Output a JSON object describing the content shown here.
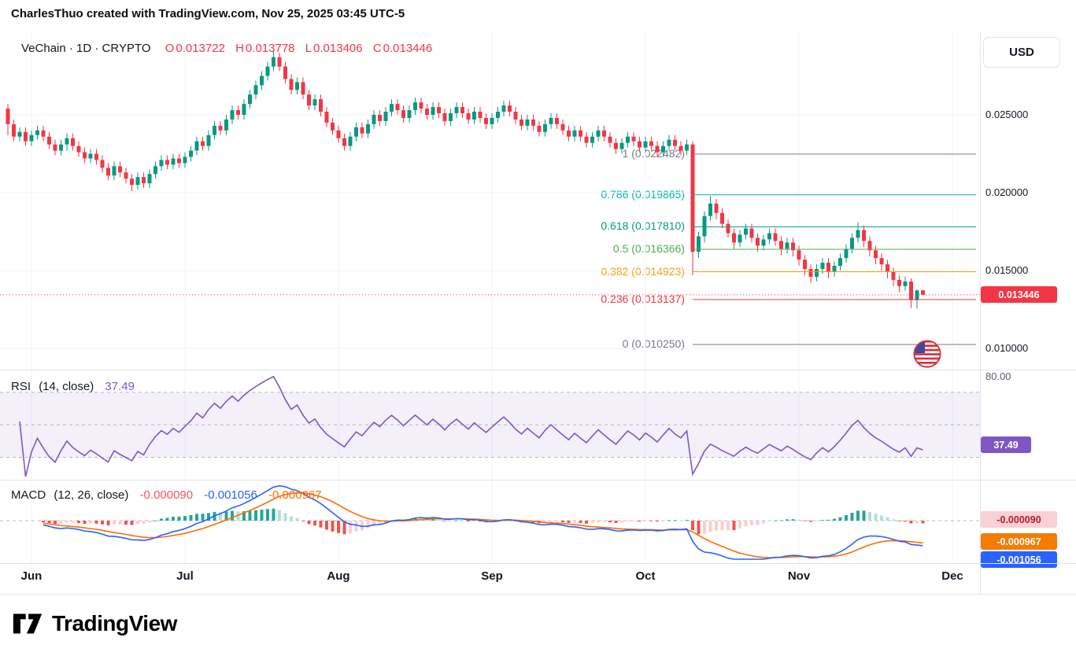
{
  "header": {
    "attribution": "CharlesThuo created with TradingView.com, Nov 25, 2025 03:45 UTC-5"
  },
  "legend": {
    "symbol_title": "VeChain · 1D · CRYPTO",
    "open_label": "O",
    "open": "0.013722",
    "high_label": "H",
    "high": "0.013778",
    "low_label": "L",
    "low": "0.013406",
    "close_label": "C",
    "close": "0.013446"
  },
  "price_axis": {
    "currency_button": "USD",
    "ticks": [
      {
        "label": "0.025000",
        "value": 0.025
      },
      {
        "label": "0.020000",
        "value": 0.02
      },
      {
        "label": "0.015000",
        "value": 0.015
      },
      {
        "label": "0.010000",
        "value": 0.01
      }
    ],
    "current_price": {
      "label": "0.013446",
      "value": 0.013446
    }
  },
  "rsi_panel": {
    "title": "RSI",
    "params": "(14, close)",
    "value_label": "37.49",
    "value": 37.49,
    "axis_label": "80.00",
    "upper": 70,
    "middle": 50,
    "lower": 30
  },
  "macd_panel": {
    "title": "MACD",
    "params": "(12, 26, close)",
    "hist_label": "-0.000090",
    "macd_label": "-0.001056",
    "signal_label": "-0.000967",
    "badges": [
      {
        "label": "-0.000090",
        "bg": "#f9d0d4",
        "fg": "#b91d29"
      },
      {
        "label": "-0.000967",
        "bg": "#f57c00",
        "fg": "#ffffff"
      },
      {
        "label": "-0.001056",
        "bg": "#2962ff",
        "fg": "#ffffff"
      }
    ]
  },
  "time_axis": {
    "labels": [
      "Jun",
      "Jul",
      "Aug",
      "Sep",
      "Oct",
      "Nov",
      "Dec"
    ]
  },
  "footer": {
    "brand": "TradingView"
  },
  "colors": {
    "up": "#089981",
    "down": "#f23645",
    "grid": "#f0f3fa",
    "rsi_line": "#7e57c2",
    "rsi_band": "rgba(126,87,194,0.09)",
    "macd_line": "#2962ff",
    "signal_line": "#ff6d00",
    "hist_pos": "#26a69a",
    "hist_pos_weak": "#b2dfdb",
    "hist_neg": "#ef5350",
    "hist_neg_weak": "#fbcdd0",
    "current_price": "#f23645",
    "hist_text": "#f7525f"
  },
  "chart_data": {
    "type": "candlestick",
    "title": "VeChain · 1D · CRYPTO",
    "symbol": "VeChain",
    "interval": "1D",
    "exchange": "CRYPTO",
    "x_axis_months": [
      "Jun",
      "Jul",
      "Aug",
      "Sep",
      "Oct",
      "Nov",
      "Dec"
    ],
    "y_ticks": [
      0.025,
      0.02,
      0.015,
      0.01
    ],
    "current_ohlc": {
      "open": 0.013722,
      "high": 0.013778,
      "low": 0.013406,
      "close": 0.013446
    },
    "fib_retracement": {
      "high": 0.022482,
      "low": 0.01025,
      "levels": [
        {
          "ratio": 1,
          "price": 0.022482,
          "label": "1 (0.022482)",
          "color": "#787b86"
        },
        {
          "ratio": 0.786,
          "price": 0.019865,
          "label": "0.786 (0.019865)",
          "color": "#00b5ad"
        },
        {
          "ratio": 0.618,
          "price": 0.01781,
          "label": "0.618 (0.017810)",
          "color": "#089981"
        },
        {
          "ratio": 0.5,
          "price": 0.016366,
          "label": "0.5 (0.016366)",
          "color": "#4caf50"
        },
        {
          "ratio": 0.382,
          "price": 0.014923,
          "label": "0.382 (0.014923)",
          "color": "#ff9800"
        },
        {
          "ratio": 0.236,
          "price": 0.013137,
          "label": "0.236 (0.013137)",
          "color": "#f23645"
        },
        {
          "ratio": 0,
          "price": 0.01025,
          "label": "0 (0.010250)",
          "color": "#787b86"
        }
      ]
    },
    "indicators": {
      "rsi": {
        "period": 14,
        "source": "close",
        "current": 37.49,
        "levels": [
          70,
          30
        ]
      },
      "macd": {
        "fast": 12,
        "slow": 26,
        "signal_period": 9,
        "histogram": -9e-05,
        "macd": -0.001056,
        "signal": -0.000967
      }
    },
    "price_unit": 0.0001,
    "candles": [
      [
        254,
        257,
        237,
        244
      ],
      [
        244,
        247,
        233,
        236
      ],
      [
        236,
        242,
        233,
        239
      ],
      [
        239,
        242,
        230,
        233
      ],
      [
        233,
        240,
        230,
        237
      ],
      [
        237,
        243,
        234,
        240
      ],
      [
        240,
        243,
        233,
        236
      ],
      [
        236,
        239,
        228,
        231
      ],
      [
        231,
        234,
        224,
        227
      ],
      [
        227,
        234,
        224,
        231
      ],
      [
        231,
        238,
        227,
        235
      ],
      [
        235,
        238,
        227,
        230
      ],
      [
        230,
        233,
        223,
        226
      ],
      [
        226,
        229,
        219,
        222
      ],
      [
        222,
        228,
        219,
        225
      ],
      [
        225,
        228,
        218,
        221
      ],
      [
        221,
        224,
        213,
        216
      ],
      [
        216,
        219,
        208,
        211
      ],
      [
        211,
        220,
        208,
        217
      ],
      [
        217,
        220,
        210,
        213
      ],
      [
        213,
        216,
        206,
        209
      ],
      [
        209,
        212,
        201,
        205
      ],
      [
        205,
        213,
        202,
        210
      ],
      [
        210,
        213,
        203,
        206
      ],
      [
        206,
        215,
        203,
        212
      ],
      [
        212,
        220,
        209,
        217
      ],
      [
        217,
        224,
        214,
        221
      ],
      [
        221,
        224,
        215,
        218
      ],
      [
        218,
        225,
        215,
        222
      ],
      [
        222,
        225,
        216,
        219
      ],
      [
        219,
        226,
        216,
        223
      ],
      [
        223,
        230,
        220,
        227
      ],
      [
        227,
        236,
        224,
        233
      ],
      [
        233,
        236,
        227,
        230
      ],
      [
        230,
        240,
        227,
        237
      ],
      [
        237,
        246,
        234,
        243
      ],
      [
        243,
        246,
        237,
        240
      ],
      [
        240,
        250,
        237,
        247
      ],
      [
        247,
        256,
        244,
        253
      ],
      [
        253,
        256,
        247,
        250
      ],
      [
        250,
        260,
        247,
        257
      ],
      [
        257,
        266,
        254,
        263
      ],
      [
        263,
        272,
        260,
        269
      ],
      [
        269,
        278,
        266,
        275
      ],
      [
        275,
        284,
        272,
        281
      ],
      [
        281,
        291,
        278,
        287
      ],
      [
        287,
        290,
        278,
        281
      ],
      [
        281,
        284,
        270,
        273
      ],
      [
        273,
        276,
        263,
        266
      ],
      [
        266,
        274,
        263,
        271
      ],
      [
        271,
        274,
        260,
        263
      ],
      [
        263,
        266,
        253,
        256
      ],
      [
        256,
        263,
        253,
        260
      ],
      [
        260,
        263,
        249,
        252
      ],
      [
        252,
        255,
        242,
        245
      ],
      [
        245,
        248,
        237,
        240
      ],
      [
        240,
        243,
        232,
        235
      ],
      [
        235,
        238,
        227,
        230
      ],
      [
        230,
        239,
        227,
        236
      ],
      [
        236,
        245,
        233,
        242
      ],
      [
        242,
        245,
        235,
        238
      ],
      [
        238,
        247,
        235,
        244
      ],
      [
        244,
        253,
        241,
        250
      ],
      [
        250,
        253,
        243,
        246
      ],
      [
        246,
        255,
        243,
        252
      ],
      [
        252,
        260,
        249,
        257
      ],
      [
        257,
        260,
        250,
        253
      ],
      [
        253,
        256,
        245,
        248
      ],
      [
        248,
        256,
        245,
        253
      ],
      [
        253,
        261,
        250,
        258
      ],
      [
        258,
        261,
        251,
        254
      ],
      [
        254,
        257,
        247,
        250
      ],
      [
        250,
        258,
        247,
        255
      ],
      [
        255,
        258,
        248,
        251
      ],
      [
        251,
        254,
        243,
        246
      ],
      [
        246,
        254,
        243,
        251
      ],
      [
        251,
        258,
        248,
        255
      ],
      [
        255,
        258,
        248,
        251
      ],
      [
        251,
        254,
        244,
        247
      ],
      [
        247,
        255,
        244,
        252
      ],
      [
        252,
        255,
        245,
        248
      ],
      [
        248,
        251,
        241,
        244
      ],
      [
        244,
        251,
        241,
        248
      ],
      [
        248,
        255,
        245,
        252
      ],
      [
        252,
        259,
        249,
        256
      ],
      [
        256,
        259,
        249,
        252
      ],
      [
        252,
        255,
        244,
        247
      ],
      [
        247,
        250,
        240,
        243
      ],
      [
        243,
        250,
        240,
        247
      ],
      [
        247,
        250,
        240,
        243
      ],
      [
        243,
        246,
        236,
        239
      ],
      [
        239,
        247,
        236,
        244
      ],
      [
        244,
        251,
        241,
        248
      ],
      [
        248,
        251,
        241,
        244
      ],
      [
        244,
        247,
        237,
        240
      ],
      [
        240,
        243,
        233,
        236
      ],
      [
        236,
        243,
        233,
        240
      ],
      [
        240,
        243,
        233,
        236
      ],
      [
        236,
        239,
        229,
        232
      ],
      [
        232,
        239,
        229,
        236
      ],
      [
        236,
        243,
        233,
        240
      ],
      [
        240,
        243,
        233,
        236
      ],
      [
        236,
        239,
        229,
        232
      ],
      [
        232,
        235,
        225,
        228
      ],
      [
        228,
        235,
        225,
        232
      ],
      [
        232,
        239,
        229,
        236
      ],
      [
        236,
        239,
        230,
        233
      ],
      [
        233,
        236,
        226,
        229
      ],
      [
        229,
        236,
        226,
        233
      ],
      [
        233,
        236,
        227,
        230
      ],
      [
        230,
        233,
        223,
        226
      ],
      [
        226,
        233,
        223,
        230
      ],
      [
        230,
        237,
        227,
        234
      ],
      [
        234,
        237,
        227,
        230
      ],
      [
        230,
        233,
        224,
        227
      ],
      [
        227,
        234,
        224,
        231
      ],
      [
        231,
        233,
        147,
        162
      ],
      [
        162,
        175,
        158,
        172
      ],
      [
        172,
        188,
        168,
        185
      ],
      [
        185,
        198,
        182,
        193
      ],
      [
        193,
        196,
        183,
        187
      ],
      [
        187,
        190,
        177,
        180
      ],
      [
        180,
        183,
        171,
        174
      ],
      [
        174,
        177,
        164,
        168
      ],
      [
        168,
        176,
        165,
        173
      ],
      [
        173,
        180,
        170,
        177
      ],
      [
        177,
        180,
        168,
        171
      ],
      [
        171,
        174,
        162,
        166
      ],
      [
        166,
        173,
        163,
        170
      ],
      [
        170,
        177,
        167,
        174
      ],
      [
        174,
        177,
        166,
        169
      ],
      [
        169,
        172,
        160,
        164
      ],
      [
        164,
        171,
        161,
        168
      ],
      [
        168,
        171,
        159,
        163
      ],
      [
        163,
        166,
        153,
        157
      ],
      [
        157,
        160,
        147,
        151
      ],
      [
        151,
        154,
        142,
        146
      ],
      [
        146,
        154,
        143,
        151
      ],
      [
        151,
        158,
        148,
        155
      ],
      [
        155,
        158,
        145,
        149
      ],
      [
        149,
        156,
        146,
        153
      ],
      [
        153,
        161,
        150,
        158
      ],
      [
        158,
        167,
        155,
        164
      ],
      [
        164,
        174,
        161,
        171
      ],
      [
        171,
        181,
        168,
        176
      ],
      [
        176,
        179,
        165,
        169
      ],
      [
        169,
        172,
        159,
        163
      ],
      [
        163,
        166,
        154,
        158
      ],
      [
        158,
        161,
        150,
        154
      ],
      [
        154,
        157,
        145,
        149
      ],
      [
        149,
        152,
        140,
        144
      ],
      [
        144,
        147,
        136,
        140
      ],
      [
        140,
        146,
        137,
        143
      ],
      [
        143,
        145,
        126,
        131
      ],
      [
        131,
        138,
        125.5,
        137.2
      ],
      [
        137.22,
        137.78,
        134.06,
        134.46
      ]
    ]
  }
}
